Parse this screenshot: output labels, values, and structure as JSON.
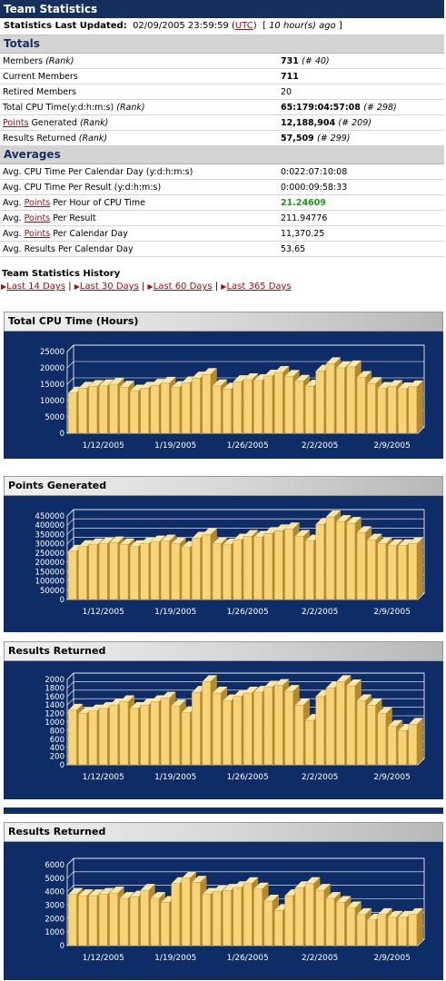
{
  "header": {
    "title": "Team Statistics"
  },
  "updated": {
    "label": "Statistics Last Updated:",
    "datetime": "02/09/2005 23:59:59",
    "tz_open": "(",
    "tz": "UTC",
    "tz_close": ")",
    "ago": "10 hour(s) ago"
  },
  "totals": {
    "heading": "Totals",
    "rows": [
      {
        "label": "Members",
        "rank_label": "(Rank)",
        "value": "731",
        "rank": "(# 40)"
      },
      {
        "label": "Current Members",
        "value": "711"
      },
      {
        "label": "Retired Members",
        "value": "20"
      },
      {
        "label": "Total CPU Time(y:d:h:m:s)",
        "rank_label": "(Rank)",
        "value": "65:179:04:57:08",
        "rank": "(# 298)"
      },
      {
        "link": "Points",
        "label": " Generated",
        "rank_label": "(Rank)",
        "value": "12,188,904",
        "rank": "(# 209)"
      },
      {
        "label": "Results Returned",
        "rank_label": "(Rank)",
        "value": "57,509",
        "rank": "(# 299)"
      }
    ]
  },
  "averages": {
    "heading": "Averages",
    "rows": [
      {
        "pre": "Avg. CPU Time Per Calendar Day (y:d:h:m:s)",
        "value": "0:022:07:10:08"
      },
      {
        "pre": "Avg. CPU Time Per Result (y:d:h:m:s)",
        "value": "0:000:09:58:33"
      },
      {
        "pre": "Avg. ",
        "link": "Points",
        "post": " Per Hour of CPU Time",
        "value": "21.24609"
      },
      {
        "pre": "Avg. ",
        "link": "Points",
        "post": " Per Result",
        "value": "211.94776"
      },
      {
        "pre": "Avg. ",
        "link": "Points",
        "post": " Per Calendar Day",
        "value": "11,370.25"
      },
      {
        "pre": "Avg. Results Per Calendar Day",
        "value": "53.65"
      }
    ]
  },
  "history": {
    "title": "Team Statistics History",
    "links": [
      "Last 14 Days",
      "Last 30 Days",
      "Last 60 Days",
      "Last 365 Days"
    ]
  },
  "colors": {
    "navy": "#0e2d66",
    "bar_front": "#f7d47a",
    "bar_side": "#b48a2c",
    "bar_top": "#fbe7a8",
    "green": "#1a9a1a",
    "link": "#a01010"
  },
  "chart_data": [
    {
      "type": "bar",
      "title": "Total CPU Time (Hours)",
      "ylim": [
        0,
        25000
      ],
      "yticks": [
        0,
        5000,
        10000,
        15000,
        20000,
        25000
      ],
      "ytick_labels": [
        "0",
        "5000",
        "10000",
        "15000",
        "20000",
        "25000"
      ],
      "xtick_labels": [
        "1/12/2005",
        "1/19/2005",
        "1/26/2005",
        "2/2/2005",
        "2/9/2005"
      ],
      "xtick_index": [
        3,
        10,
        17,
        24,
        31
      ],
      "values": [
        12300,
        13800,
        14300,
        14500,
        15000,
        14100,
        12900,
        13800,
        14700,
        15300,
        14000,
        15400,
        16900,
        18000,
        14500,
        13500,
        15800,
        16400,
        16100,
        17500,
        18600,
        17400,
        15900,
        14400,
        19000,
        21300,
        20000,
        20300,
        17100,
        15200,
        13700,
        14300,
        13600,
        14200
      ]
    },
    {
      "type": "bar",
      "title": "Points Generated",
      "ylim": [
        0,
        450000
      ],
      "yticks": [
        0,
        50000,
        100000,
        150000,
        200000,
        250000,
        300000,
        350000,
        400000,
        450000
      ],
      "ytick_labels": [
        "0",
        "50000",
        "100000",
        "150000",
        "200000",
        "250000",
        "300000",
        "350000",
        "400000",
        "450000"
      ],
      "xtick_labels": [
        "1/12/2005",
        "1/19/2005",
        "1/26/2005",
        "2/2/2005",
        "2/9/2005"
      ],
      "xtick_index": [
        3,
        10,
        17,
        24,
        31
      ],
      "values": [
        260000,
        285000,
        295000,
        300000,
        305000,
        295000,
        285000,
        300000,
        310000,
        315000,
        300000,
        280000,
        330000,
        350000,
        300000,
        295000,
        320000,
        340000,
        335000,
        355000,
        370000,
        380000,
        340000,
        315000,
        405000,
        445000,
        420000,
        410000,
        360000,
        320000,
        300000,
        290000,
        290000,
        300000
      ]
    },
    {
      "type": "bar",
      "title": "Results Returned",
      "ylim": [
        0,
        2000
      ],
      "yticks": [
        0,
        200,
        400,
        600,
        800,
        1000,
        1200,
        1400,
        1600,
        1800,
        2000
      ],
      "ytick_labels": [
        "0",
        "200",
        "400",
        "600",
        "800",
        "1000",
        "1200",
        "1400",
        "1600",
        "1800",
        "2000"
      ],
      "xtick_labels": [
        "1/12/2005",
        "1/19/2005",
        "1/26/2005",
        "2/2/2005",
        "2/9/2005"
      ],
      "xtick_index": [
        3,
        10,
        17,
        24,
        31
      ],
      "values": [
        1280,
        1200,
        1260,
        1320,
        1400,
        1480,
        1320,
        1400,
        1480,
        1560,
        1380,
        1220,
        1700,
        1950,
        1680,
        1500,
        1600,
        1680,
        1700,
        1820,
        1860,
        1720,
        1400,
        1040,
        1600,
        1800,
        1950,
        1850,
        1500,
        1400,
        1200,
        900,
        800,
        950
      ]
    },
    {
      "type": "bar",
      "title": "Results Returned",
      "ylim": [
        0,
        6000
      ],
      "yticks": [
        0,
        1000,
        2000,
        3000,
        4000,
        5000,
        6000
      ],
      "ytick_labels": [
        "0",
        "1000",
        "2000",
        "3000",
        "4000",
        "5000",
        "6000"
      ],
      "xtick_labels": [
        "1/12/2005",
        "1/19/2005",
        "1/26/2005",
        "2/2/2005",
        "2/9/2005"
      ],
      "xtick_index": [
        3,
        10,
        17,
        24,
        31
      ],
      "values": [
        3800,
        3700,
        3700,
        3800,
        3900,
        3500,
        3600,
        4100,
        3500,
        3200,
        4600,
        5000,
        4700,
        3800,
        4000,
        4100,
        4300,
        4600,
        4200,
        3300,
        2600,
        3700,
        4300,
        4600,
        4100,
        3500,
        3200,
        2800,
        2300,
        1900,
        2300,
        2100,
        2100,
        2300
      ]
    }
  ]
}
